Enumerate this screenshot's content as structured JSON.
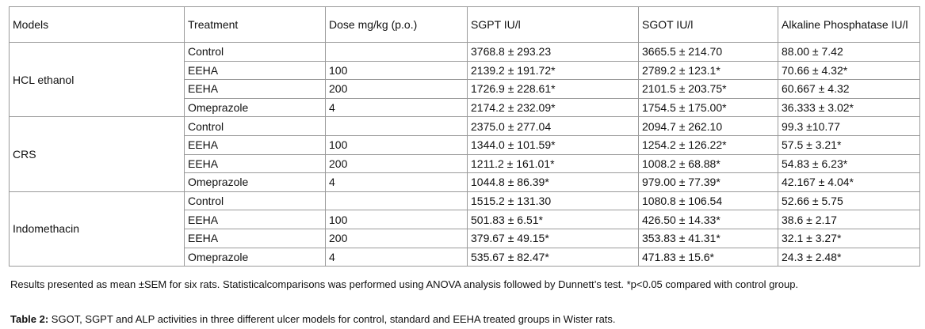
{
  "table": {
    "headers": [
      "Models",
      "Treatment",
      "Dose mg/kg (p.o.)",
      "SGPT IU/l",
      "SGOT IU/l",
      "Alkaline Phosphatase IU/l"
    ],
    "groups": [
      {
        "model": "HCL ethanol",
        "rows": [
          [
            "Control",
            "",
            "3768.8 ± 293.23",
            "3665.5 ± 214.70",
            "88.00 ± 7.42"
          ],
          [
            "EEHA",
            "100",
            "2139.2 ± 191.72*",
            "2789.2 ± 123.1*",
            "70.66 ± 4.32*"
          ],
          [
            "EEHA",
            "200",
            "1726.9 ± 228.61*",
            "2101.5 ± 203.75*",
            "60.667 ± 4.32"
          ],
          [
            "Omeprazole",
            "4",
            "2174.2 ± 232.09*",
            "1754.5 ± 175.00*",
            "36.333 ± 3.02*"
          ]
        ]
      },
      {
        "model": "CRS",
        "rows": [
          [
            "Control",
            "",
            "2375.0 ± 277.04",
            "2094.7 ± 262.10",
            "99.3 ±10.77"
          ],
          [
            "EEHA",
            "100",
            "1344.0 ± 101.59*",
            "1254.2 ± 126.22*",
            "57.5 ± 3.21*"
          ],
          [
            "EEHA",
            "200",
            "1211.2 ± 161.01*",
            "1008.2 ± 68.88*",
            "54.83 ± 6.23*"
          ],
          [
            "Omeprazole",
            "4",
            "1044.8 ± 86.39*",
            "979.00 ± 77.39*",
            "42.167 ± 4.04*"
          ]
        ]
      },
      {
        "model": "Indomethacin",
        "rows": [
          [
            "Control",
            "",
            "1515.2 ± 131.30",
            "1080.8 ± 106.54",
            "52.66 ± 5.75"
          ],
          [
            "EEHA",
            "100",
            "501.83 ± 6.51*",
            "426.50 ± 14.33*",
            "38.6 ± 2.17"
          ],
          [
            "EEHA",
            "200",
            "379.67 ± 49.15*",
            "353.83 ± 41.31*",
            "32.1 ± 3.27*"
          ],
          [
            "Omeprazole",
            "4",
            "535.67 ± 82.47*",
            "471.83 ± 15.6*",
            "24.3 ± 2.48*"
          ]
        ]
      }
    ]
  },
  "note": "Results presented as mean ±SEM for six rats. Statisticalcomparisons was performed using ANOVA analysis followed by Dunnett’s test.  *p<0.05 compared with control group.",
  "caption": {
    "label": "Table 2:",
    "text": " SGOT, SGPT and ALP activities in three different ulcer models for control, standard and EEHA treated groups in Wister rats."
  }
}
